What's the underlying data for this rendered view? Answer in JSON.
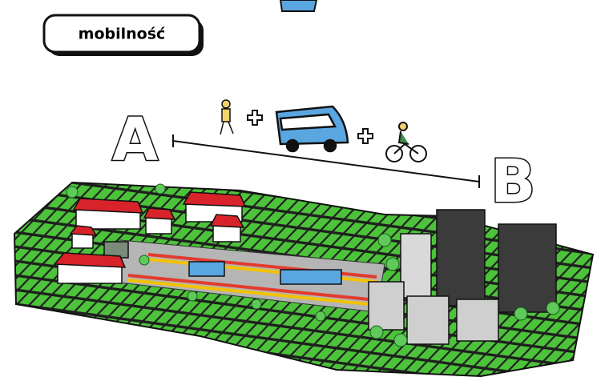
{
  "label": "mobilność",
  "route": {
    "start": "A",
    "end": "B"
  }
}
